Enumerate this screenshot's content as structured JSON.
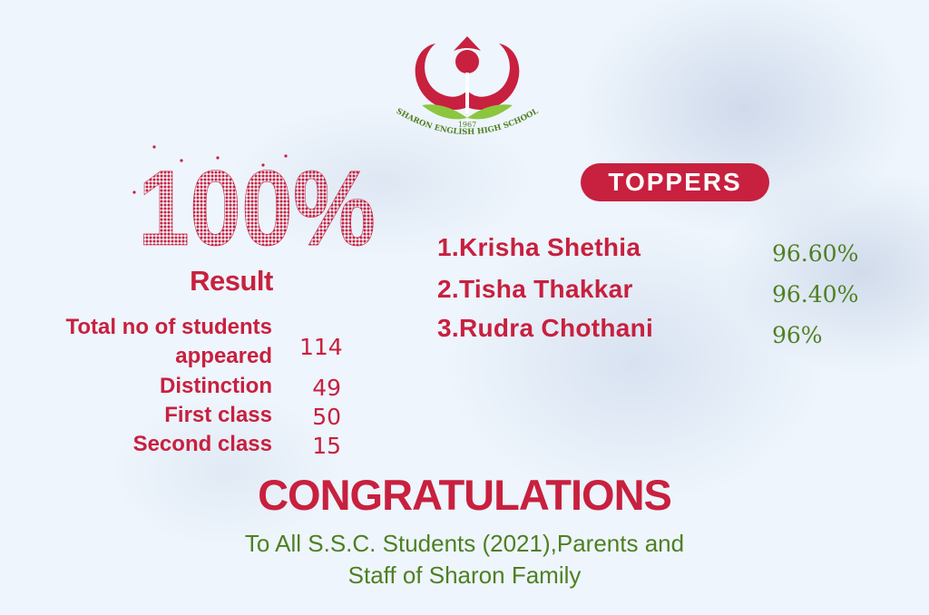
{
  "logo": {
    "school_name": "SHARON ENGLISH HIGH SCHOOL",
    "year": "1967"
  },
  "hero": {
    "percent_text": "100%",
    "result_label": "Result"
  },
  "stats": [
    {
      "label_line1": "Total no of students",
      "label_line2": "appeared",
      "value": "114"
    },
    {
      "label": "Distinction",
      "value": "49"
    },
    {
      "label": "First class",
      "value": "50"
    },
    {
      "label": "Second class",
      "value": "15"
    }
  ],
  "toppers": {
    "heading": "TOPPERS",
    "list": [
      {
        "name": "1.Krisha Shethia",
        "percent": "96.60%"
      },
      {
        "name": "2.Tisha Thakkar",
        "percent": "96.40%"
      },
      {
        "name": "3.Rudra Chothani",
        "percent": "96%"
      }
    ]
  },
  "footer": {
    "headline": "CONGRATULATIONS",
    "line1": "To All S.S.C. Students (2021),Parents and",
    "line2": "Staff of Sharon Family"
  },
  "colors": {
    "primary_red": "#c8203f",
    "green": "#4f7f22",
    "background": "#eef5fc"
  }
}
